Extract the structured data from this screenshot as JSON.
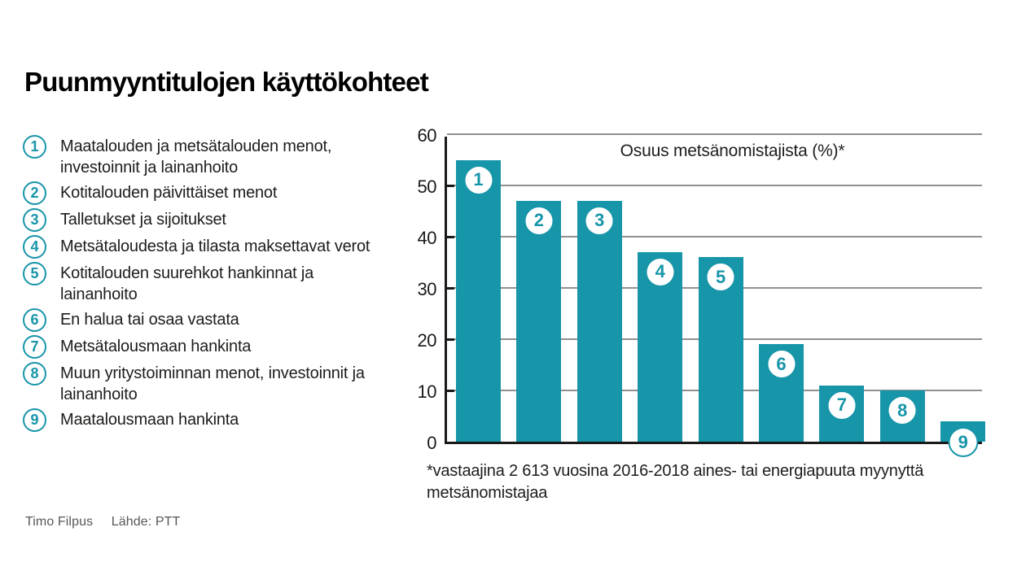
{
  "page": {
    "title": "Puunmyyntitulojen käyttökohteet"
  },
  "legend": {
    "items": [
      {
        "num": "1",
        "label": "Maatalouden ja metsätalouden menot, investoinnit ja lainanhoito"
      },
      {
        "num": "2",
        "label": "Kotitalouden päivittäiset menot"
      },
      {
        "num": "3",
        "label": "Talletukset ja sijoitukset"
      },
      {
        "num": "4",
        "label": "Metsätaloudesta ja tilasta maksettavat verot"
      },
      {
        "num": "5",
        "label": "Kotitalouden suurehkot hankinnat ja lainanhoito"
      },
      {
        "num": "6",
        "label": "En halua tai osaa vastata"
      },
      {
        "num": "7",
        "label": "Metsätalousmaan hankinta"
      },
      {
        "num": "8",
        "label": "Muun yritystoiminnan menot, investoinnit ja lainanhoito"
      },
      {
        "num": "9",
        "label": "Maatalousmaan hankinta"
      }
    ]
  },
  "chart_data": {
    "type": "bar",
    "title": "Osuus metsänomistajista (%)*",
    "categories": [
      "1",
      "2",
      "3",
      "4",
      "5",
      "6",
      "7",
      "8",
      "9"
    ],
    "values": [
      55,
      47,
      47,
      37,
      36,
      19,
      11,
      10,
      4
    ],
    "xlabel": "",
    "ylabel": "Osuus metsänomistajista (%)",
    "ylim": [
      0,
      60
    ],
    "yticks": [
      0,
      10,
      20,
      30,
      40,
      50,
      60
    ],
    "grid": "horizontal",
    "legend_position": "left-panel-numbered-list",
    "bar_color": "#1795a9"
  },
  "footnote": "*vastaajina 2 613 vuosina 2016-2018 aines- tai energiapuuta myynyttä metsänomistajaa",
  "credits": {
    "author": "Timo Filpus",
    "source": "Lähde: PTT"
  },
  "colors": {
    "teal": "#1795a9",
    "grid": "#909090",
    "axis": "#1a1a1a",
    "text": "#1d1d1b",
    "credit": "#575756"
  }
}
